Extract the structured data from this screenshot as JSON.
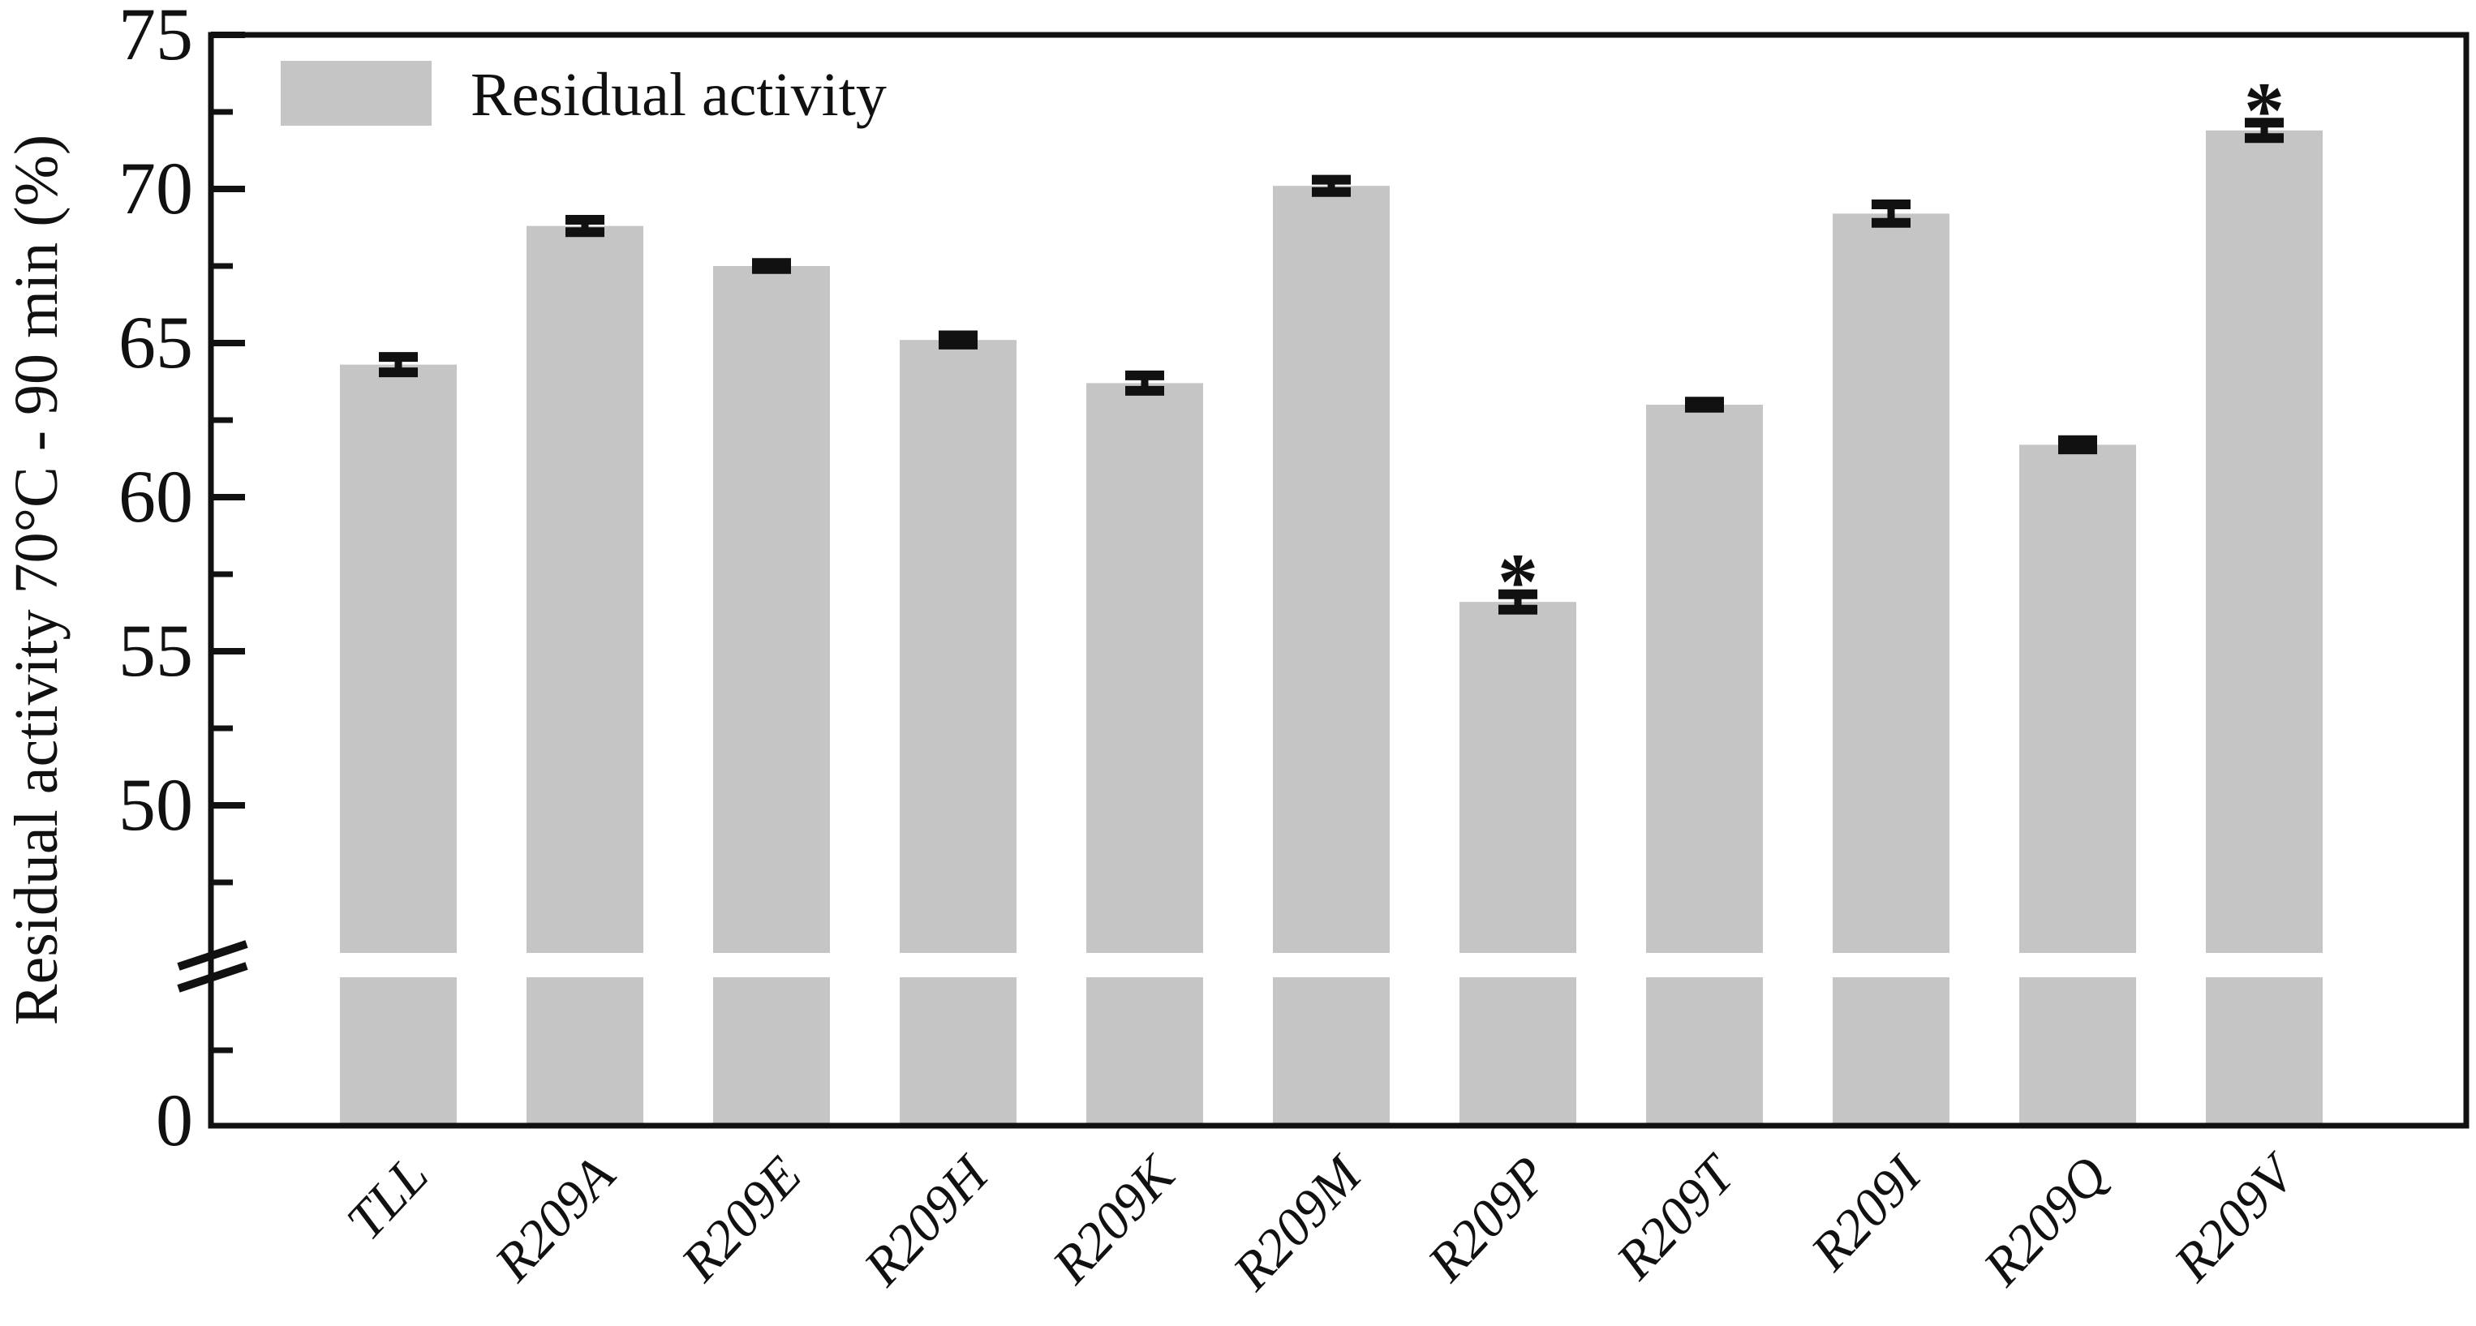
{
  "figure": {
    "background": "#ffffff",
    "frame_color": "#111111",
    "legend_label": "Residual activity"
  },
  "chart_data": {
    "type": "bar",
    "title": "",
    "xlabel": "",
    "ylabel": "Residual activity 70°C - 90 min (%)",
    "legend_label": "Residual activity",
    "legend_position": "top-left",
    "grid": false,
    "bar_color": "#c5c5c5",
    "error_color": "#111111",
    "categories": [
      "TLL",
      "R209A",
      "R209E",
      "R209H",
      "R209K",
      "R209M",
      "R209P",
      "R209T",
      "R209I",
      "R209Q",
      "R209V"
    ],
    "values": [
      64.3,
      68.8,
      67.5,
      65.1,
      63.7,
      70.1,
      56.6,
      63.0,
      69.2,
      61.7,
      71.9
    ],
    "errors": [
      0.25,
      0.2,
      0.1,
      0.15,
      0.25,
      0.2,
      0.25,
      0.1,
      0.3,
      0.15,
      0.25
    ],
    "significance": [
      null,
      null,
      null,
      null,
      null,
      null,
      "*",
      null,
      null,
      null,
      "*"
    ],
    "y_axis": {
      "broken_axis": true,
      "upper_segment_range": [
        47.5,
        75
      ],
      "major_ticks": [
        50,
        55,
        60,
        65,
        70,
        75
      ],
      "minor_ticks": [
        47.5,
        52.5,
        57.5,
        62.5,
        67.5,
        72.5
      ],
      "lower_segment_label": "0"
    }
  }
}
